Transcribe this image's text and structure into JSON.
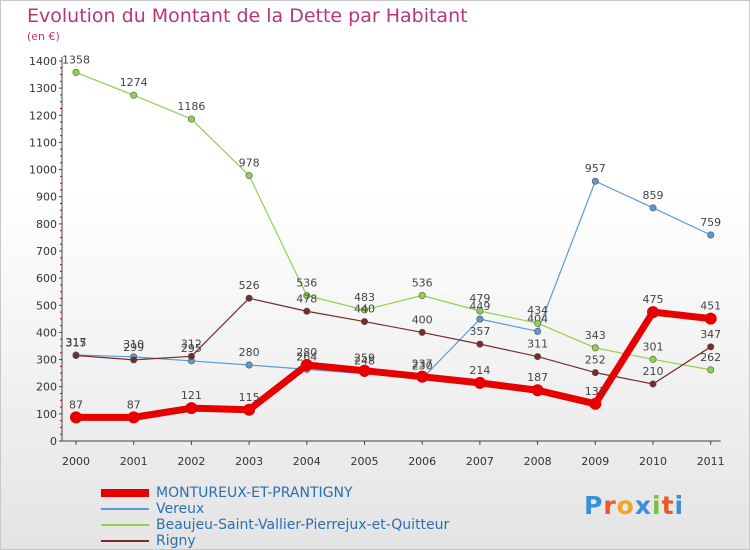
{
  "title": "Evolution du Montant de la Dette par Habitant",
  "unit": "(en €)",
  "logo_text": "Proxiti",
  "chart_data": {
    "type": "line",
    "x": [
      "2000",
      "2001",
      "2002",
      "2003",
      "2004",
      "2005",
      "2006",
      "2007",
      "2008",
      "2009",
      "2010",
      "2011"
    ],
    "ylim": [
      0,
      1400
    ],
    "yticks": [
      0,
      100,
      200,
      300,
      400,
      500,
      600,
      700,
      800,
      900,
      1000,
      1100,
      1200,
      1300,
      1400
    ],
    "grid": false,
    "legend_position": "bottom",
    "series": [
      {
        "name": "MONTUREUX-ET-PRANTIGNY",
        "color": "#e60000",
        "values": [
          87,
          87,
          121,
          115,
          280,
          259,
          237,
          214,
          187,
          137,
          475,
          451
        ]
      },
      {
        "name": "Vereux",
        "color": "#5b9bd5",
        "values": [
          317,
          310,
          295,
          280,
          264,
          248,
          230,
          449,
          404,
          957,
          859,
          759
        ]
      },
      {
        "name": "Beaujeu-Saint-Vallier-Pierrejux-et-Quitteur",
        "color": "#8fd14f",
        "values": [
          1358,
          1274,
          1186,
          978,
          536,
          483,
          536,
          479,
          434,
          343,
          301,
          262
        ]
      },
      {
        "name": "Rigny",
        "color": "#7a2a2a",
        "values": [
          315,
          299,
          312,
          526,
          478,
          440,
          400,
          357,
          311,
          252,
          210,
          347
        ]
      }
    ]
  }
}
